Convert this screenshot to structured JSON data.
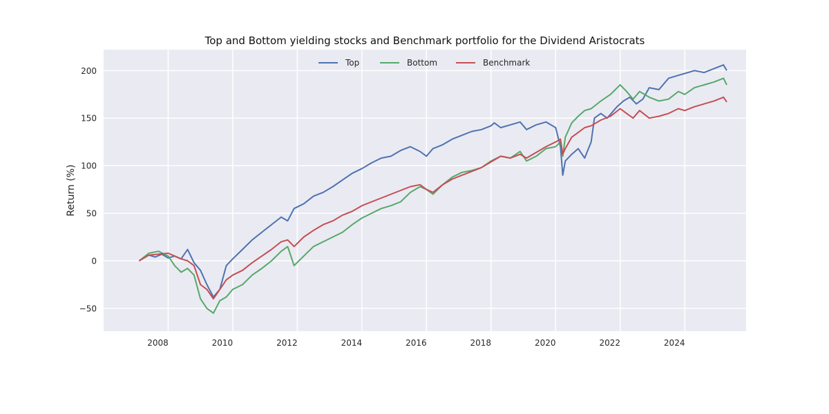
{
  "chart_data": {
    "type": "line",
    "title": "Top and Bottom yielding stocks and Benchmark portfolio for the Dividend Aristocrats",
    "xlabel": "",
    "ylabel": "Return (%)",
    "xlim": [
      2006.0,
      2025.9
    ],
    "ylim": [
      -74,
      222
    ],
    "x_ticks": [
      2008,
      2010,
      2012,
      2014,
      2016,
      2018,
      2020,
      2022,
      2024
    ],
    "y_ticks": [
      -50,
      0,
      50,
      100,
      150,
      200
    ],
    "grid": true,
    "legend": {
      "position": "top-center",
      "entries": [
        "Top",
        "Bottom",
        "Benchmark"
      ]
    },
    "background": "#eaeaf2",
    "series": [
      {
        "name": "Top",
        "color": "#4c72b0",
        "x": [
          2007.1,
          2007.4,
          2007.6,
          2007.8,
          2008.0,
          2008.2,
          2008.4,
          2008.6,
          2008.8,
          2009.0,
          2009.2,
          2009.4,
          2009.6,
          2009.8,
          2010.0,
          2010.3,
          2010.6,
          2010.9,
          2011.2,
          2011.5,
          2011.7,
          2011.9,
          2012.2,
          2012.5,
          2012.8,
          2013.1,
          2013.4,
          2013.7,
          2014.0,
          2014.3,
          2014.6,
          2014.9,
          2015.2,
          2015.5,
          2015.8,
          2016.0,
          2016.2,
          2016.5,
          2016.8,
          2017.1,
          2017.4,
          2017.7,
          2018.0,
          2018.1,
          2018.3,
          2018.6,
          2018.9,
          2019.1,
          2019.4,
          2019.7,
          2020.0,
          2020.15,
          2020.22,
          2020.3,
          2020.5,
          2020.7,
          2020.9,
          2021.1,
          2021.2,
          2021.4,
          2021.6,
          2021.9,
          2022.1,
          2022.3,
          2022.5,
          2022.7,
          2022.9,
          2023.2,
          2023.5,
          2023.8,
          2024.0,
          2024.3,
          2024.6,
          2024.9,
          2025.2,
          2025.3
        ],
        "values": [
          0,
          6,
          4,
          7,
          3,
          5,
          2,
          12,
          -2,
          -10,
          -25,
          -38,
          -30,
          -5,
          2,
          12,
          22,
          30,
          38,
          46,
          42,
          55,
          60,
          68,
          72,
          78,
          85,
          92,
          97,
          103,
          108,
          110,
          116,
          120,
          115,
          110,
          118,
          122,
          128,
          132,
          136,
          138,
          142,
          145,
          140,
          143,
          146,
          138,
          143,
          146,
          140,
          120,
          90,
          105,
          112,
          118,
          108,
          125,
          150,
          155,
          150,
          162,
          168,
          172,
          165,
          170,
          182,
          180,
          192,
          195,
          197,
          200,
          198,
          202,
          206,
          200
        ]
      },
      {
        "name": "Bottom",
        "color": "#55a868",
        "x": [
          2007.1,
          2007.4,
          2007.7,
          2008.0,
          2008.2,
          2008.4,
          2008.6,
          2008.8,
          2009.0,
          2009.2,
          2009.4,
          2009.6,
          2009.8,
          2010.0,
          2010.3,
          2010.6,
          2010.9,
          2011.2,
          2011.5,
          2011.7,
          2011.9,
          2012.2,
          2012.5,
          2012.8,
          2013.1,
          2013.4,
          2013.7,
          2014.0,
          2014.3,
          2014.6,
          2014.9,
          2015.2,
          2015.5,
          2015.8,
          2016.0,
          2016.2,
          2016.5,
          2016.8,
          2017.1,
          2017.4,
          2017.7,
          2018.0,
          2018.3,
          2018.6,
          2018.9,
          2019.1,
          2019.4,
          2019.7,
          2020.0,
          2020.15,
          2020.22,
          2020.3,
          2020.5,
          2020.7,
          2020.9,
          2021.1,
          2021.4,
          2021.7,
          2022.0,
          2022.2,
          2022.4,
          2022.6,
          2022.9,
          2023.2,
          2023.5,
          2023.8,
          2024.0,
          2024.3,
          2024.6,
          2024.9,
          2025.2,
          2025.3
        ],
        "values": [
          0,
          8,
          10,
          5,
          -5,
          -12,
          -8,
          -15,
          -40,
          -50,
          -55,
          -42,
          -38,
          -30,
          -25,
          -15,
          -8,
          0,
          10,
          15,
          -5,
          5,
          15,
          20,
          25,
          30,
          38,
          45,
          50,
          55,
          58,
          62,
          72,
          78,
          75,
          70,
          80,
          88,
          93,
          95,
          98,
          105,
          110,
          108,
          115,
          105,
          110,
          118,
          120,
          125,
          110,
          130,
          145,
          152,
          158,
          160,
          168,
          175,
          185,
          178,
          170,
          178,
          172,
          168,
          170,
          178,
          175,
          182,
          185,
          188,
          192,
          185
        ]
      },
      {
        "name": "Benchmark",
        "color": "#c44e52",
        "x": [
          2007.1,
          2007.4,
          2007.7,
          2008.0,
          2008.2,
          2008.4,
          2008.6,
          2008.8,
          2009.0,
          2009.2,
          2009.4,
          2009.6,
          2009.8,
          2010.0,
          2010.3,
          2010.6,
          2010.9,
          2011.2,
          2011.5,
          2011.7,
          2011.9,
          2012.2,
          2012.5,
          2012.8,
          2013.1,
          2013.4,
          2013.7,
          2014.0,
          2014.3,
          2014.6,
          2014.9,
          2015.2,
          2015.5,
          2015.8,
          2016.0,
          2016.2,
          2016.5,
          2016.8,
          2017.1,
          2017.4,
          2017.7,
          2018.0,
          2018.3,
          2018.6,
          2018.9,
          2019.1,
          2019.4,
          2019.7,
          2020.0,
          2020.15,
          2020.22,
          2020.3,
          2020.5,
          2020.7,
          2020.9,
          2021.1,
          2021.4,
          2021.7,
          2022.0,
          2022.2,
          2022.4,
          2022.6,
          2022.9,
          2023.2,
          2023.5,
          2023.8,
          2024.0,
          2024.3,
          2024.6,
          2024.9,
          2025.2,
          2025.3
        ],
        "values": [
          0,
          6,
          7,
          8,
          5,
          2,
          0,
          -5,
          -25,
          -30,
          -40,
          -30,
          -20,
          -15,
          -10,
          -2,
          5,
          12,
          20,
          22,
          15,
          25,
          32,
          38,
          42,
          48,
          52,
          58,
          62,
          66,
          70,
          74,
          78,
          80,
          75,
          72,
          80,
          86,
          90,
          94,
          98,
          104,
          110,
          108,
          112,
          108,
          114,
          120,
          125,
          128,
          112,
          118,
          130,
          135,
          140,
          142,
          148,
          152,
          160,
          155,
          150,
          158,
          150,
          152,
          155,
          160,
          158,
          162,
          165,
          168,
          172,
          167
        ]
      }
    ]
  }
}
